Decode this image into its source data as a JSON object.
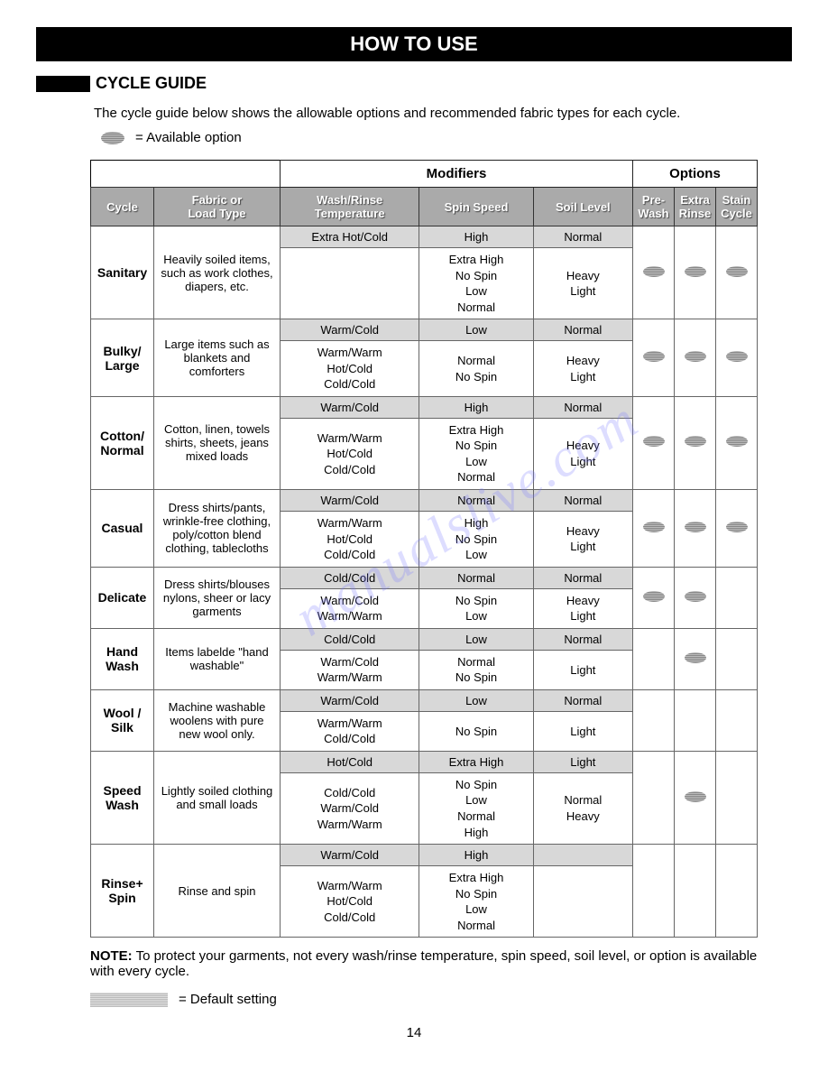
{
  "banner": "HOW TO USE",
  "section_title": "CYCLE GUIDE",
  "intro": "The cycle guide below shows the allowable options and recommended fabric types for each cycle.",
  "legend_available": "= Available option",
  "legend_default": "= Default setting",
  "note_label": "NOTE:",
  "note_text": "To protect your garments, not every wash/rinse temperature, spin speed, soil level, or option is available with every cycle.",
  "page_number": "14",
  "watermark": "manualslive.com",
  "headers": {
    "modifiers": "Modifiers",
    "options": "Options",
    "cycle": "Cycle",
    "fabric": "Fabric or\nLoad Type",
    "temp": "Wash/Rinse\nTemperature",
    "spin": "Spin Speed",
    "soil": "Soil Level",
    "prewash": "Pre-\nWash",
    "extrarinse": "Extra\nRinse",
    "stain": "Stain\nCycle"
  },
  "rows": [
    {
      "cycle": "Sanitary",
      "fabric": "Heavily soiled items, such as work clothes, diapers, etc.",
      "default": {
        "temp": "Extra Hot/Cold",
        "spin": "High",
        "soil": "Normal"
      },
      "alt": {
        "temp": "",
        "spin": "Extra High\nNo Spin\nLow\nNormal",
        "soil": "Heavy\nLight"
      },
      "opts": {
        "prewash": true,
        "extrarinse": true,
        "stain": true
      }
    },
    {
      "cycle": "Bulky/\nLarge",
      "fabric": "Large items such as blankets and comforters",
      "default": {
        "temp": "Warm/Cold",
        "spin": "Low",
        "soil": "Normal"
      },
      "alt": {
        "temp": "Warm/Warm\nHot/Cold\nCold/Cold",
        "spin": "Normal\nNo Spin",
        "soil": "Heavy\nLight"
      },
      "opts": {
        "prewash": true,
        "extrarinse": true,
        "stain": true
      }
    },
    {
      "cycle": "Cotton/\nNormal",
      "fabric": "Cotton, linen, towels shirts, sheets, jeans mixed loads",
      "default": {
        "temp": "Warm/Cold",
        "spin": "High",
        "soil": "Normal"
      },
      "alt": {
        "temp": "Warm/Warm\nHot/Cold\nCold/Cold",
        "spin": "Extra High\nNo Spin\nLow\nNormal",
        "soil": "Heavy\nLight"
      },
      "opts": {
        "prewash": true,
        "extrarinse": true,
        "stain": true
      }
    },
    {
      "cycle": "Casual",
      "fabric": "Dress shirts/pants, wrinkle-free clothing, poly/cotton blend clothing, tablecloths",
      "default": {
        "temp": "Warm/Cold",
        "spin": "Normal",
        "soil": "Normal"
      },
      "alt": {
        "temp": "Warm/Warm\nHot/Cold\nCold/Cold",
        "spin": "High\nNo Spin\nLow",
        "soil": "Heavy\nLight"
      },
      "opts": {
        "prewash": true,
        "extrarinse": true,
        "stain": true
      }
    },
    {
      "cycle": "Delicate",
      "fabric": "Dress shirts/blouses nylons, sheer or lacy garments",
      "default": {
        "temp": "Cold/Cold",
        "spin": "Normal",
        "soil": "Normal"
      },
      "alt": {
        "temp": "Warm/Cold\nWarm/Warm",
        "spin": "No Spin\nLow",
        "soil": "Heavy\nLight"
      },
      "opts": {
        "prewash": true,
        "extrarinse": true,
        "stain": false
      }
    },
    {
      "cycle": "Hand Wash",
      "fabric": "Items labelde \"hand washable\"",
      "default": {
        "temp": "Cold/Cold",
        "spin": "Low",
        "soil": "Normal"
      },
      "alt": {
        "temp": "Warm/Cold\nWarm/Warm",
        "spin": "Normal\nNo Spin",
        "soil": "Light"
      },
      "opts": {
        "prewash": false,
        "extrarinse": true,
        "stain": false
      }
    },
    {
      "cycle": "Wool / Silk",
      "fabric": "Machine washable woolens with pure new wool only.",
      "default": {
        "temp": "Warm/Cold",
        "spin": "Low",
        "soil": "Normal"
      },
      "alt": {
        "temp": "Warm/Warm\nCold/Cold",
        "spin": "No Spin",
        "soil": "Light"
      },
      "opts": {
        "prewash": false,
        "extrarinse": false,
        "stain": false
      }
    },
    {
      "cycle": "Speed\nWash",
      "fabric": "Lightly soiled clothing and small loads",
      "default": {
        "temp": "Hot/Cold",
        "spin": "Extra High",
        "soil": "Light"
      },
      "alt": {
        "temp": "Cold/Cold\nWarm/Cold\nWarm/Warm",
        "spin": "No Spin\nLow\nNormal\nHigh",
        "soil": "Normal\nHeavy"
      },
      "opts": {
        "prewash": false,
        "extrarinse": true,
        "stain": false
      }
    },
    {
      "cycle": "Rinse+\nSpin",
      "fabric": "Rinse and spin",
      "default": {
        "temp": "Warm/Cold",
        "spin": "High",
        "soil": ""
      },
      "alt": {
        "temp": "Warm/Warm\nHot/Cold\nCold/Cold",
        "spin": "Extra High\nNo Spin\nLow\nNormal",
        "soil": ""
      },
      "opts": {
        "prewash": false,
        "extrarinse": false,
        "stain": false
      }
    }
  ]
}
